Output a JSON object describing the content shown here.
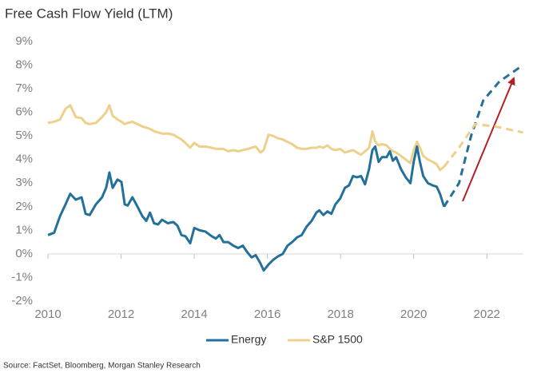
{
  "chart_data": {
    "type": "line",
    "title": "Free Cash Flow Yield (LTM)",
    "source": "Source: FactSet, Bloomberg, Morgan Stanley Research",
    "x": [
      2010.0,
      2010.17,
      2010.33,
      2010.48,
      2010.61,
      2010.76,
      2010.92,
      2011.03,
      2011.14,
      2011.31,
      2011.48,
      2011.59,
      2011.68,
      2011.77,
      2011.9,
      2012.01,
      2012.1,
      2012.18,
      2012.31,
      2012.45,
      2012.58,
      2012.69,
      2012.79,
      2012.9,
      2013.01,
      2013.12,
      2013.28,
      2013.43,
      2013.54,
      2013.65,
      2013.76,
      2013.89,
      2014.0,
      2014.15,
      2014.3,
      2014.48,
      2014.59,
      2014.69,
      2014.8,
      2014.93,
      2015.07,
      2015.2,
      2015.33,
      2015.46,
      2015.57,
      2015.68,
      2015.81,
      2015.9,
      2016.03,
      2016.16,
      2016.29,
      2016.42,
      2016.55,
      2016.68,
      2016.81,
      2016.94,
      2017.07,
      2017.21,
      2017.34,
      2017.42,
      2017.53,
      2017.64,
      2017.75,
      2017.86,
      2017.99,
      2018.12,
      2018.23,
      2018.34,
      2018.45,
      2018.56,
      2018.67,
      2018.78,
      2018.87,
      2018.95,
      2019.04,
      2019.13,
      2019.26,
      2019.35,
      2019.43,
      2019.52,
      2019.65,
      2019.78,
      2019.91,
      2020.0,
      2020.09,
      2020.17,
      2020.26,
      2020.39,
      2020.52,
      2020.63,
      2020.72,
      2020.83
    ],
    "series": [
      {
        "name": "Energy",
        "color": "#23709a",
        "values": [
          0.8,
          0.9,
          1.6,
          2.1,
          2.55,
          2.3,
          2.4,
          1.7,
          1.65,
          2.1,
          2.4,
          2.8,
          3.45,
          2.8,
          3.15,
          3.05,
          2.1,
          2.05,
          2.4,
          2.0,
          1.6,
          1.4,
          1.75,
          1.3,
          1.25,
          1.45,
          1.3,
          1.35,
          1.2,
          0.8,
          0.75,
          0.45,
          1.1,
          1.0,
          0.95,
          0.75,
          0.65,
          0.8,
          0.5,
          0.5,
          0.35,
          0.25,
          0.35,
          0.05,
          -0.15,
          -0.05,
          -0.4,
          -0.7,
          -0.45,
          -0.25,
          -0.1,
          0.0,
          0.35,
          0.5,
          0.7,
          0.8,
          1.15,
          1.4,
          1.75,
          1.85,
          1.65,
          1.8,
          1.7,
          2.1,
          2.35,
          2.8,
          2.9,
          3.3,
          3.25,
          3.3,
          2.95,
          3.6,
          4.4,
          4.55,
          3.9,
          4.1,
          4.1,
          4.35,
          3.95,
          4.1,
          3.6,
          3.25,
          3.0,
          3.9,
          4.55,
          3.9,
          3.3,
          3.0,
          2.9,
          2.85,
          2.55,
          2.0
        ],
        "forecast_x": [
          2020.83,
          2021.24,
          2021.57,
          2021.9,
          2022.34,
          2022.99
        ],
        "forecast_values": [
          2.0,
          3.0,
          5.0,
          6.5,
          7.3,
          8.0
        ]
      },
      {
        "name": "S&P 1500",
        "color": "#ecd08c",
        "values": [
          5.55,
          5.6,
          5.7,
          6.15,
          6.3,
          5.8,
          5.75,
          5.55,
          5.5,
          5.55,
          5.8,
          6.0,
          6.3,
          5.85,
          5.7,
          5.6,
          5.5,
          5.55,
          5.6,
          5.5,
          5.4,
          5.35,
          5.3,
          5.2,
          5.15,
          5.1,
          5.1,
          5.05,
          4.95,
          4.85,
          4.7,
          4.5,
          4.7,
          4.55,
          4.55,
          4.5,
          4.45,
          4.45,
          4.45,
          4.35,
          4.4,
          4.35,
          4.4,
          4.45,
          4.5,
          4.55,
          4.3,
          4.4,
          5.05,
          5.0,
          4.9,
          4.85,
          4.75,
          4.65,
          4.5,
          4.45,
          4.45,
          4.5,
          4.5,
          4.55,
          4.5,
          4.6,
          4.45,
          4.4,
          4.45,
          4.3,
          4.35,
          4.4,
          4.3,
          4.2,
          4.35,
          4.5,
          5.2,
          4.75,
          4.6,
          4.65,
          4.6,
          4.45,
          4.35,
          4.3,
          4.15,
          4.0,
          3.85,
          4.4,
          4.75,
          4.5,
          4.15,
          4.0,
          3.9,
          3.8,
          3.55,
          3.7
        ],
        "forecast_x": [
          2020.83,
          2021.24,
          2021.68,
          2022.23,
          2022.99
        ],
        "forecast_values": [
          3.7,
          4.5,
          5.5,
          5.4,
          5.15
        ]
      }
    ],
    "xlim": [
      2010,
      2023
    ],
    "xticks": [
      2010,
      2012,
      2014,
      2016,
      2018,
      2020,
      2022
    ],
    "ylim": [
      -2,
      9
    ],
    "yticks": [
      {
        "value": -2,
        "label": "-2%"
      },
      {
        "value": -1,
        "label": "-1%"
      },
      {
        "value": 0,
        "label": "0%"
      },
      {
        "value": 1,
        "label": "1%"
      },
      {
        "value": 2,
        "label": "2%"
      },
      {
        "value": 3,
        "label": "3%"
      },
      {
        "value": 4,
        "label": "4%"
      },
      {
        "value": 5,
        "label": "5%"
      },
      {
        "value": 6,
        "label": "6%"
      },
      {
        "value": 7,
        "label": "7%"
      },
      {
        "value": 8,
        "label": "8%"
      },
      {
        "value": 9,
        "label": "9%"
      }
    ],
    "grid": false,
    "legend": "bottom"
  }
}
